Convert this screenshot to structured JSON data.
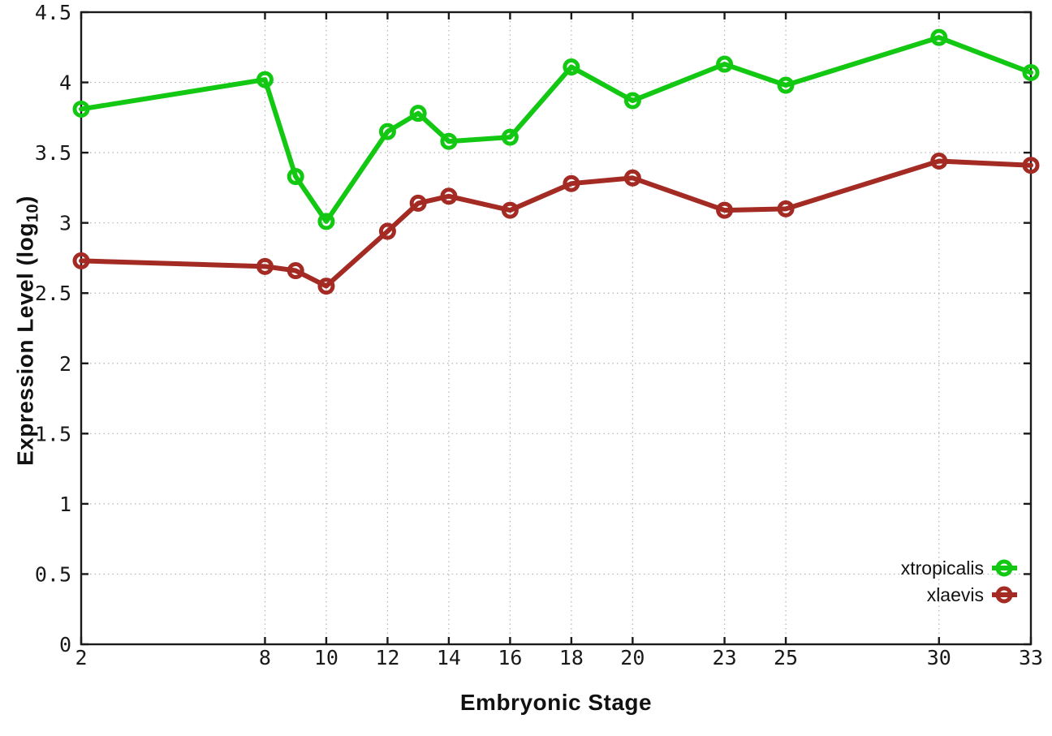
{
  "figure": {
    "background": "#ffffff",
    "frame_color": "#1a1a1a",
    "grid_color": "#b3b3b3",
    "tick_label_color": "#1a1a1a"
  },
  "chart_data": {
    "type": "line",
    "title": "",
    "xlabel": "Embryonic Stage",
    "ylabel": "Expression Level (log10)",
    "ylabel_parts": {
      "pre": "Expression Level (log",
      "sub": "10",
      "post": ")"
    },
    "x": [
      2,
      8,
      9,
      10,
      12,
      13,
      14,
      16,
      18,
      20,
      23,
      25,
      30,
      33
    ],
    "series": [
      {
        "name": "xtropicalis",
        "color": "#12c812",
        "values": [
          3.81,
          4.02,
          3.33,
          3.01,
          3.65,
          3.78,
          3.58,
          3.61,
          4.11,
          3.87,
          4.13,
          3.98,
          4.32,
          4.07
        ]
      },
      {
        "name": "xlaevis",
        "color": "#a32b24",
        "values": [
          2.73,
          2.69,
          2.66,
          2.55,
          2.94,
          3.14,
          3.19,
          3.09,
          3.28,
          3.32,
          3.09,
          3.1,
          3.44,
          3.41
        ]
      }
    ],
    "xlim": [
      2,
      33
    ],
    "ylim": [
      0,
      4.5
    ],
    "xticks": {
      "values": [
        2,
        8,
        10,
        12,
        14,
        16,
        18,
        20,
        23,
        25,
        30,
        33
      ],
      "labels": [
        "2",
        "8",
        "10",
        "12",
        "14",
        "16",
        "18",
        "20",
        "23",
        "25",
        "30",
        "33"
      ]
    },
    "yticks": {
      "values": [
        0,
        0.5,
        1,
        1.5,
        2,
        2.5,
        3,
        3.5,
        4,
        4.5
      ],
      "labels": [
        "0",
        "0.5",
        "1",
        "1.5",
        "2",
        "2.5",
        "3",
        "3.5",
        "4",
        "4.5"
      ]
    },
    "grid": "dotted",
    "legend_position": "inside-bottom-right",
    "marker": "open-circle"
  }
}
